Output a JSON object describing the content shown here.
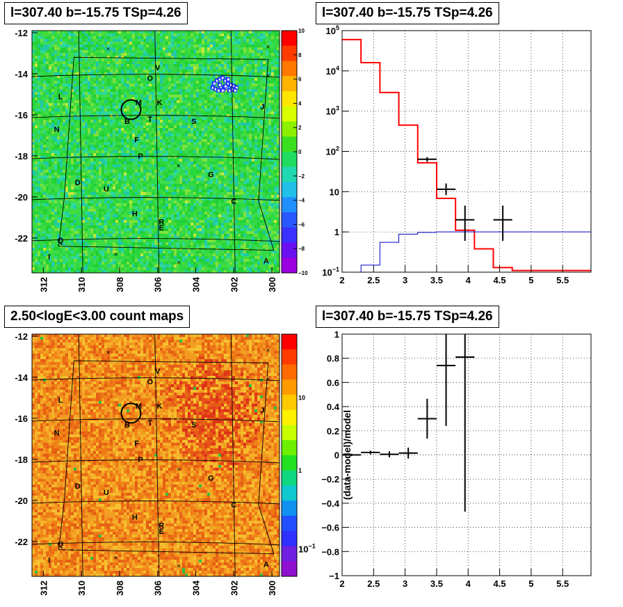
{
  "panels": {
    "tl": {
      "title": "l=307.40 b=-15.75 TSp=4.26"
    },
    "tr": {
      "title": "l=307.40 b=-15.75 TSp=4.26"
    },
    "bl": {
      "title": "2.50<logE<3.00 count maps"
    },
    "br": {
      "title": "l=307.40 b=-15.75 TSp=4.26"
    }
  },
  "chart_data": [
    {
      "id": "tsmap",
      "type": "heatmap",
      "title": "l=307.40 b=-15.75 TSp=4.26",
      "x_ticks": [
        "312",
        "310",
        "308",
        "306",
        "304",
        "302",
        "300"
      ],
      "y_ticks": [
        "-12",
        "-14",
        "-16",
        "-18",
        "-20",
        "-22"
      ],
      "xlim": [
        312.6,
        299.6
      ],
      "ylim": [
        -23.7,
        -11.9
      ],
      "colorbar": {
        "min": -10,
        "max": 10,
        "ticks": [
          "10",
          "8",
          "6",
          "4",
          "2",
          "0",
          "−2",
          "−4",
          "−6",
          "−8",
          "−10"
        ]
      },
      "colors": {
        "background": "#2fd83a",
        "hotspot": "#1a2fff"
      },
      "sources": [
        {
          "label": "V",
          "l": 306.0,
          "b": -13.7
        },
        {
          "label": "O",
          "l": 306.4,
          "b": -14.2
        },
        {
          "label": "L",
          "l": 311.1,
          "b": -15.1
        },
        {
          "label": "M",
          "l": 307.0,
          "b": -15.4
        },
        {
          "label": "K",
          "l": 305.9,
          "b": -15.4
        },
        {
          "label": "J",
          "l": 300.5,
          "b": -15.6
        },
        {
          "label": "N",
          "l": 311.3,
          "b": -16.7
        },
        {
          "label": "B",
          "l": 307.6,
          "b": -16.3
        },
        {
          "label": "T",
          "l": 306.4,
          "b": -16.2
        },
        {
          "label": "S",
          "l": 304.1,
          "b": -16.3
        },
        {
          "label": "F",
          "l": 307.1,
          "b": -17.2
        },
        {
          "label": "P",
          "l": 306.9,
          "b": -18.0
        },
        {
          "label": "G",
          "l": 303.2,
          "b": -18.9
        },
        {
          "label": "D",
          "l": 310.2,
          "b": -19.3
        },
        {
          "label": "U",
          "l": 308.7,
          "b": -19.6
        },
        {
          "label": "C",
          "l": 302.0,
          "b": -20.2
        },
        {
          "label": "H",
          "l": 307.2,
          "b": -20.8
        },
        {
          "label": "R",
          "l": 305.8,
          "b": -21.2
        },
        {
          "label": "E",
          "l": 305.8,
          "b": -21.5
        },
        {
          "label": "Q",
          "l": 311.1,
          "b": -22.1
        },
        {
          "label": "I",
          "l": 311.7,
          "b": -22.9
        },
        {
          "label": "A",
          "l": 300.3,
          "b": -23.1
        }
      ],
      "crosses": [
        {
          "l": 308.6,
          "b": -12.8
        },
        {
          "l": 300.2,
          "b": -12.7
        },
        {
          "l": 300.2,
          "b": -14.1
        },
        {
          "l": 304.9,
          "b": -18.5
        },
        {
          "l": 308.2,
          "b": -22.8
        },
        {
          "l": 304.9,
          "b": -23.2
        }
      ],
      "target": {
        "l": 307.4,
        "b": -15.75
      }
    },
    {
      "id": "spectrum",
      "type": "line",
      "title": "l=307.40 b=-15.75 TSp=4.26",
      "xlim": [
        2.0,
        5.95
      ],
      "ylim": [
        0.1,
        100000
      ],
      "y_log": true,
      "grid": true,
      "x_ticks": [
        "2",
        "2.5",
        "3",
        "3.5",
        "4",
        "4.5",
        "5",
        "5.5"
      ],
      "y_ticks": [
        {
          "v": 0.1,
          "base": "10",
          "exp": "−1"
        },
        {
          "v": 1,
          "text": "1"
        },
        {
          "v": 10,
          "text": "10"
        },
        {
          "v": 100,
          "base": "10",
          "exp": "2"
        },
        {
          "v": 1000,
          "base": "10",
          "exp": "3"
        },
        {
          "v": 10000,
          "base": "10",
          "exp": "4"
        },
        {
          "v": 100000,
          "base": "10",
          "exp": "5"
        }
      ],
      "bin_edges": [
        2.0,
        2.3,
        2.6,
        2.9,
        3.2,
        3.5,
        3.8,
        4.1,
        4.4,
        4.7,
        5.0,
        5.3,
        5.6,
        5.95
      ],
      "series": [
        {
          "color": "#ff0000",
          "width": 2,
          "values": [
            60000,
            16000,
            2900,
            450,
            52,
            6.8,
            1.1,
            0.38,
            0.13,
            0.11,
            0.11,
            0.11,
            0.11
          ]
        },
        {
          "color": "#0000cc",
          "width": 1,
          "values": [
            0.1,
            0.15,
            0.55,
            0.88,
            0.97,
            1.0,
            1.0,
            1.0,
            1.0,
            1.0,
            1.0,
            1.0,
            1.0
          ]
        }
      ],
      "points": [
        {
          "x": 3.35,
          "y": 64,
          "xerr": 0.15,
          "ylo": 55,
          "yhi": 72
        },
        {
          "x": 3.65,
          "y": 11.5,
          "xerr": 0.15,
          "ylo": 8.2,
          "yhi": 16
        },
        {
          "x": 3.95,
          "y": 2.0,
          "xerr": 0.15,
          "ylo": 0.6,
          "yhi": 4.5
        },
        {
          "x": 4.55,
          "y": 2.0,
          "xerr": 0.15,
          "ylo": 0.6,
          "yhi": 4.5
        }
      ]
    },
    {
      "id": "countmap",
      "type": "heatmap",
      "title": "2.50<logE<3.00 count maps",
      "x_ticks": [
        "312",
        "310",
        "308",
        "306",
        "304",
        "302",
        "300"
      ],
      "y_ticks": [
        "-12",
        "-14",
        "-16",
        "-18",
        "-20",
        "-22"
      ],
      "xlim": [
        312.6,
        299.6
      ],
      "ylim": [
        -23.7,
        -11.9
      ],
      "colorbar": {
        "ticks": [
          {
            "base": "10",
            "exp": "",
            "text": "10"
          },
          {
            "text": "1"
          },
          {
            "base": "10",
            "exp": "−1"
          }
        ]
      },
      "colors": {
        "background": "#f28a1e",
        "hot": "#e23a1a"
      },
      "sources_ref": "tsmap",
      "target": {
        "l": 307.4,
        "b": -15.75
      }
    },
    {
      "id": "residual",
      "type": "scatter",
      "title": "l=307.40 b=-15.75 TSp=4.26",
      "ylabel": "(data-model)/model",
      "xlim": [
        2.0,
        5.95
      ],
      "ylim": [
        -1,
        1
      ],
      "grid": true,
      "x_ticks": [
        "2",
        "2.5",
        "3",
        "3.5",
        "4",
        "4.5",
        "5",
        "5.5"
      ],
      "y_ticks": [
        "−1",
        "−0.8",
        "−0.6",
        "−0.4",
        "−0.2",
        "0",
        "0.2",
        "0.4",
        "0.6",
        "0.8",
        "1"
      ],
      "points": [
        {
          "x": 2.15,
          "y": 0.0,
          "xerr": 0.15,
          "err": 0.01
        },
        {
          "x": 2.45,
          "y": 0.02,
          "xerr": 0.15,
          "err": 0.015
        },
        {
          "x": 2.75,
          "y": 0.005,
          "xerr": 0.15,
          "err": 0.025
        },
        {
          "x": 3.05,
          "y": 0.015,
          "xerr": 0.15,
          "err": 0.045
        },
        {
          "x": 3.35,
          "y": 0.3,
          "xerr": 0.15,
          "err": 0.165
        },
        {
          "x": 3.65,
          "y": 0.74,
          "xerr": 0.15,
          "err": 0.5
        },
        {
          "x": 3.95,
          "y": 0.81,
          "xerr": 0.15,
          "err": 1.28
        }
      ]
    }
  ]
}
